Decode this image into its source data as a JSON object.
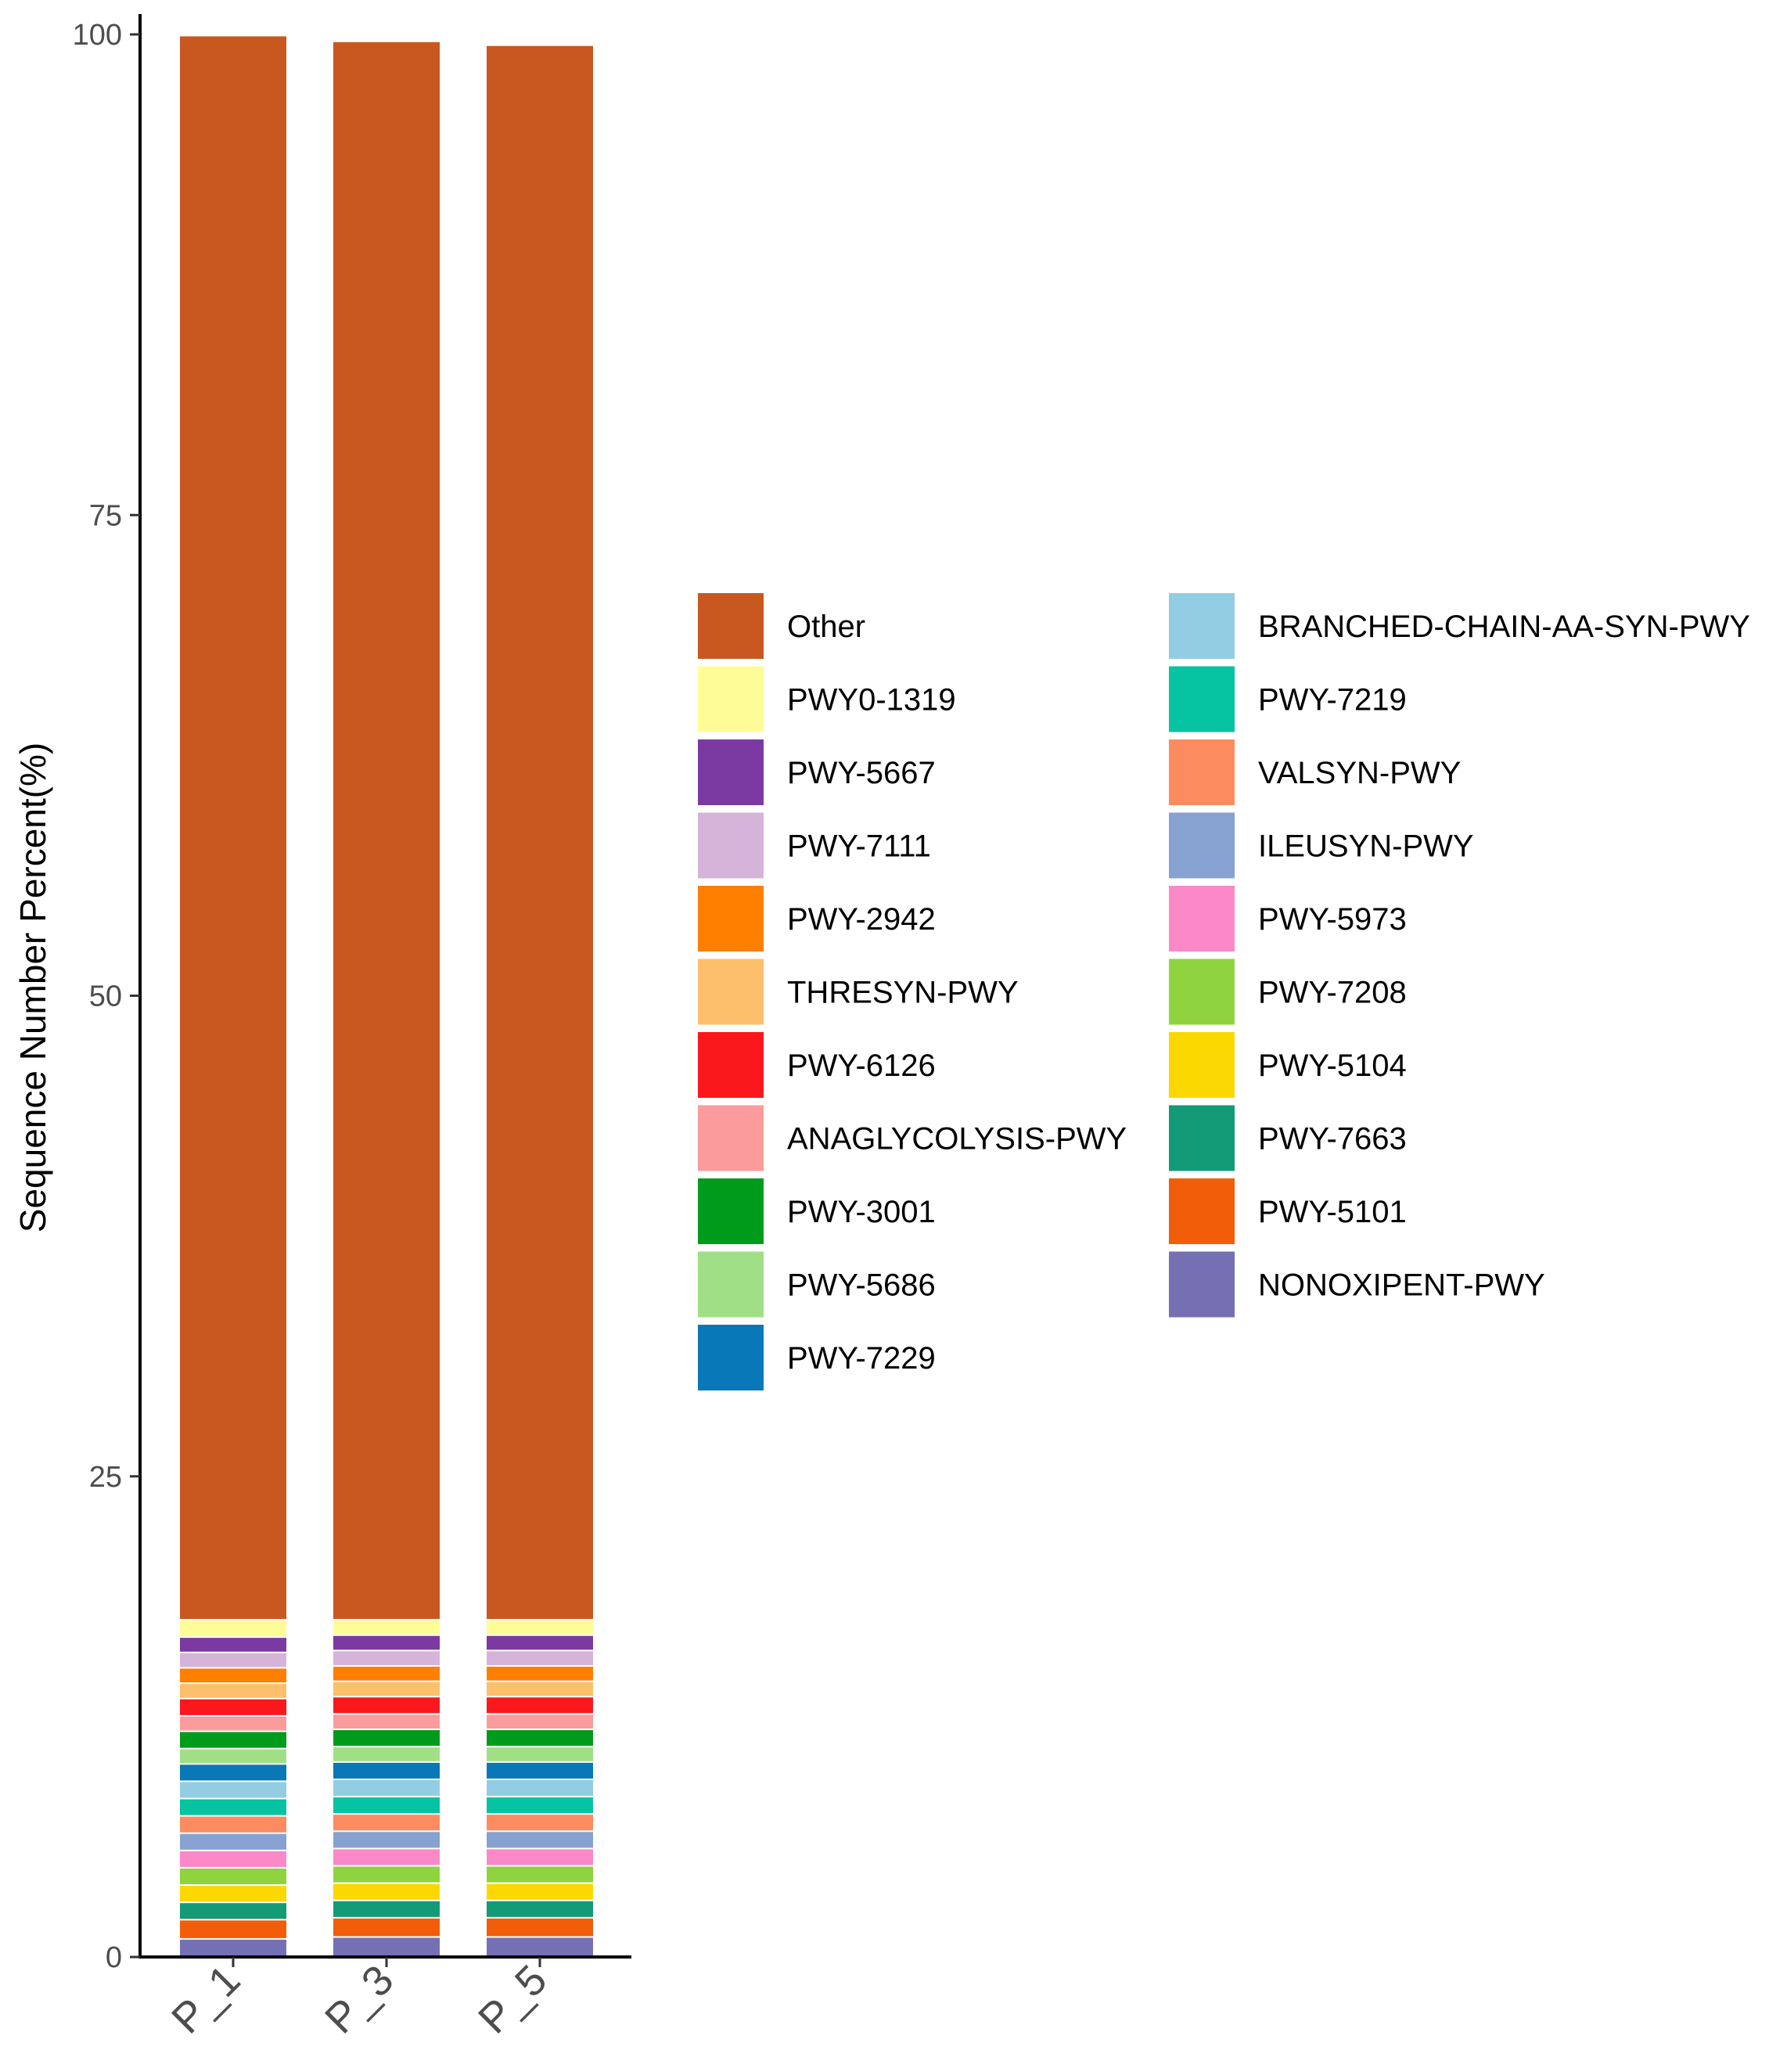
{
  "chart_data": {
    "type": "bar",
    "stacked": true,
    "title": "",
    "xlabel": "",
    "ylabel": "Sequence Number Percent(%)",
    "ylim": [
      0,
      100
    ],
    "yticks": [
      0,
      25,
      50,
      75,
      100
    ],
    "categories": [
      "P_1",
      "P_3",
      "P_5"
    ],
    "legend_position": "right",
    "series": [
      {
        "name": "NONOXIPENT-PWY",
        "color": "#7570b3",
        "values": [
          0.9,
          1.0,
          1.0
        ]
      },
      {
        "name": "PWY-5101",
        "color": "#f25d0a",
        "values": [
          1.0,
          1.0,
          1.0
        ]
      },
      {
        "name": "PWY-7663",
        "color": "#129b76",
        "values": [
          0.9,
          0.9,
          0.9
        ]
      },
      {
        "name": "PWY-5104",
        "color": "#fbd801",
        "values": [
          0.9,
          0.9,
          0.9
        ]
      },
      {
        "name": "PWY-7208",
        "color": "#8fd43e",
        "values": [
          0.9,
          0.9,
          0.9
        ]
      },
      {
        "name": "PWY-5973",
        "color": "#fb89c8",
        "values": [
          0.9,
          0.9,
          0.9
        ]
      },
      {
        "name": "ILEUSYN-PWY",
        "color": "#87a2d0",
        "values": [
          0.9,
          0.9,
          0.9
        ]
      },
      {
        "name": "VALSYN-PWY",
        "color": "#fc8c60",
        "values": [
          0.9,
          0.9,
          0.9
        ]
      },
      {
        "name": "PWY-7219",
        "color": "#06c3a1",
        "values": [
          0.9,
          0.9,
          0.9
        ]
      },
      {
        "name": "BRANCHED-CHAIN-AA-SYN-PWY",
        "color": "#93cde3",
        "values": [
          0.9,
          0.9,
          0.9
        ]
      },
      {
        "name": "PWY-7229",
        "color": "#0878b8",
        "values": [
          0.9,
          0.9,
          0.9
        ]
      },
      {
        "name": "PWY-5686",
        "color": "#a1df87",
        "values": [
          0.8,
          0.8,
          0.8
        ]
      },
      {
        "name": "PWY-3001",
        "color": "#019b1c",
        "values": [
          0.9,
          0.9,
          0.9
        ]
      },
      {
        "name": "ANAGLYCOLYSIS-PWY",
        "color": "#fb9b9c",
        "values": [
          0.8,
          0.8,
          0.8
        ]
      },
      {
        "name": "PWY-6126",
        "color": "#fa181d",
        "values": [
          0.9,
          0.9,
          0.9
        ]
      },
      {
        "name": "THRESYN-PWY",
        "color": "#fdbf6c",
        "values": [
          0.8,
          0.8,
          0.8
        ]
      },
      {
        "name": "PWY-2942",
        "color": "#ff7f00",
        "values": [
          0.8,
          0.8,
          0.8
        ]
      },
      {
        "name": "PWY-7111",
        "color": "#d6b4da",
        "values": [
          0.8,
          0.8,
          0.8
        ]
      },
      {
        "name": "PWY-5667",
        "color": "#7b3aa1",
        "values": [
          0.8,
          0.8,
          0.8
        ]
      },
      {
        "name": "PWY0-1319",
        "color": "#fefc96",
        "values": [
          0.9,
          0.8,
          0.8
        ]
      },
      {
        "name": "Other",
        "color": "#c8581f",
        "values": [
          82.4,
          82.1,
          81.9
        ]
      }
    ],
    "legend": {
      "columns": [
        [
          "Other",
          "PWY0-1319",
          "PWY-5667",
          "PWY-7111",
          "PWY-2942",
          "THRESYN-PWY",
          "PWY-6126",
          "ANAGLYCOLYSIS-PWY",
          "PWY-3001",
          "PWY-5686",
          "PWY-7229"
        ],
        [
          "BRANCHED-CHAIN-AA-SYN-PWY",
          "PWY-7219",
          "VALSYN-PWY",
          "ILEUSYN-PWY",
          "PWY-5973",
          "PWY-7208",
          "PWY-5104",
          "PWY-7663",
          "PWY-5101",
          "NONOXIPENT-PWY"
        ]
      ]
    }
  }
}
